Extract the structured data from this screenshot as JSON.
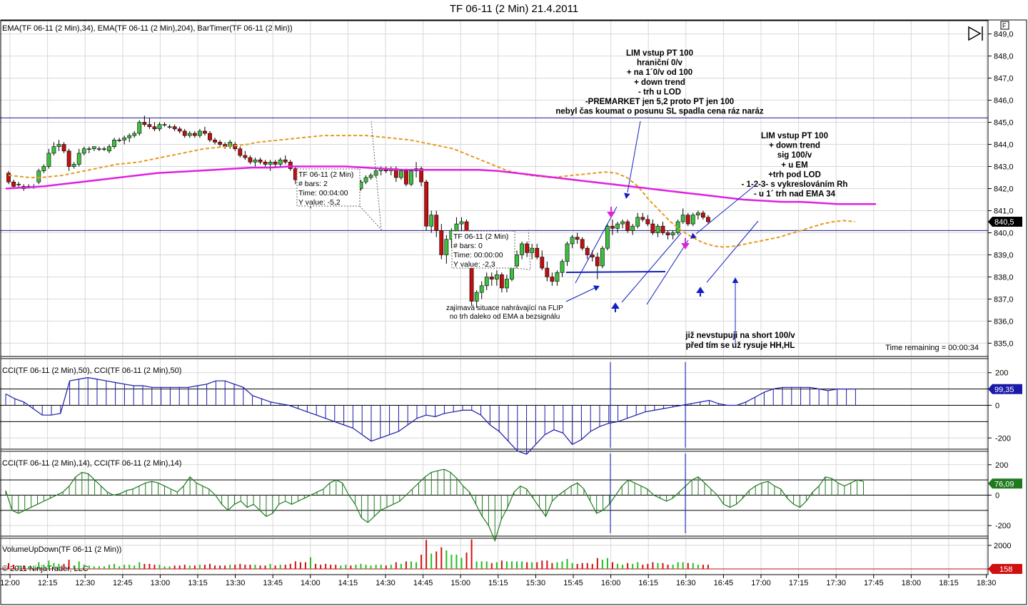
{
  "window": {
    "title": "TF 06-11 (2 Min)  21.4.2011",
    "f_button": "F",
    "copyright": "© 2011 NinjaTrader, LLC"
  },
  "price_panel": {
    "label": "EMA(TF 06-11 (2 Min),34), EMA(TF 06-11 (2 Min),204), BarTimer(TF 06-11 (2 Min))",
    "ylim": [
      834.4,
      849.6
    ],
    "y_ticks": [
      "849,0",
      "848,0",
      "847,0",
      "846,0",
      "845,0",
      "844,0",
      "843,0",
      "842,0",
      "841,0",
      "840,0",
      "839,0",
      "838,0",
      "837,0",
      "836,0",
      "835,0"
    ],
    "last_price": "840,5",
    "time_remaining": "Time remaining = 00:00:34",
    "hlines": [
      845.2,
      840.1
    ],
    "info_box_1": [
      "TF 06-11 (2 Min)",
      "# bars:   2",
      "Time:     00:04:00",
      "Y value:  -5,2"
    ],
    "info_box_2": [
      "TF 06-11 (2 Min)",
      "# bars:   0",
      "Time:     00:00:00",
      "Y value:  -2,3"
    ],
    "annotation_1": [
      "LIM vstup PT 100",
      "hraniční 0/v",
      "+ na 1´0/v od 100",
      "+ down trend",
      "- trh u LOD",
      "-PREMARKET jen 5,2 proto PT jen 100",
      "nebyl čas koumat o posunu SL spadla cena ráz naráz"
    ],
    "annotation_2": [
      "LIM vstup PT 100",
      "+ down trend",
      "sig 100/v",
      "+ u EM",
      "+trh pod LOD",
      "- 1-2-3- s vykreslováním Rh",
      "- u 1´ trh nad EMA 34"
    ],
    "annotation_3": [
      "zajímavá situace nahrávající na FLIP",
      "no trh daleko od EMA a bezsignálu"
    ],
    "annotation_4": [
      "již nevstupuji na short 100/v",
      "před tím se už rysuje HH,HL"
    ]
  },
  "cci50_panel": {
    "label": "CCI(TF 06-11 (2 Min),50), CCI(TF 06-11 (2 Min),50)",
    "y_ticks": [
      "200",
      "0",
      "-200"
    ],
    "last_value": "99,35",
    "color": "#1a1aaa"
  },
  "cci14_panel": {
    "label": "CCI(TF 06-11 (2 Min),14), CCI(TF 06-11 (2 Min),14)",
    "y_ticks": [
      "200",
      "0",
      "-200"
    ],
    "last_value": "76,09",
    "color": "#1f7a1f"
  },
  "volume_panel": {
    "label": "VolumeUpDown(TF 06-11 (2 Min))",
    "y_ticks": [
      "2000"
    ],
    "last_value": "158"
  },
  "x_axis": {
    "ticks": [
      "12:00",
      "12:15",
      "12:30",
      "12:45",
      "13:00",
      "13:15",
      "13:30",
      "13:45",
      "14:00",
      "14:15",
      "14:30",
      "14:45",
      "15:00",
      "15:15",
      "15:30",
      "15:45",
      "16:00",
      "16:15",
      "16:30",
      "16:45",
      "17:00",
      "17:15",
      "17:30",
      "17:45",
      "18:00",
      "18:15",
      "18:30"
    ]
  },
  "chart_data": {
    "type": "candlestick",
    "x_start": "12:00",
    "interval_minutes": 2,
    "ohlc": [
      [
        842.7,
        842.8,
        842.2,
        842.3
      ],
      [
        842.3,
        842.4,
        842.0,
        842.1
      ],
      [
        842.2,
        842.3,
        842.0,
        842.2
      ],
      [
        842.1,
        842.2,
        841.9,
        842.0
      ],
      [
        842.1,
        842.2,
        842.0,
        842.1
      ],
      [
        842.1,
        842.2,
        842.0,
        842.1
      ],
      [
        842.3,
        842.9,
        842.2,
        842.8
      ],
      [
        842.8,
        843.1,
        842.7,
        843.0
      ],
      [
        843.0,
        843.8,
        842.9,
        843.6
      ],
      [
        843.6,
        844.1,
        843.5,
        843.9
      ],
      [
        843.9,
        844.2,
        843.7,
        844.0
      ],
      [
        844.0,
        844.1,
        843.6,
        843.7
      ],
      [
        843.7,
        843.8,
        842.8,
        843.0
      ],
      [
        843.0,
        843.2,
        842.9,
        843.1
      ],
      [
        843.1,
        843.8,
        843.0,
        843.6
      ],
      [
        843.6,
        843.9,
        843.5,
        843.8
      ],
      [
        843.8,
        843.9,
        843.6,
        843.8
      ],
      [
        843.8,
        843.9,
        843.7,
        843.9
      ],
      [
        843.8,
        843.9,
        843.7,
        843.8
      ],
      [
        843.8,
        843.9,
        843.7,
        843.8
      ],
      [
        843.7,
        844.0,
        843.6,
        843.9
      ],
      [
        843.9,
        844.3,
        843.8,
        844.2
      ],
      [
        844.2,
        844.3,
        844.1,
        844.2
      ],
      [
        844.2,
        844.4,
        844.0,
        844.3
      ],
      [
        844.3,
        844.5,
        844.1,
        844.4
      ],
      [
        844.4,
        844.6,
        844.3,
        844.5
      ],
      [
        844.5,
        845.1,
        844.4,
        845.0
      ],
      [
        845.0,
        845.3,
        844.8,
        844.9
      ],
      [
        844.9,
        845.2,
        844.7,
        844.8
      ],
      [
        844.8,
        845.0,
        844.6,
        844.7
      ],
      [
        844.7,
        845.0,
        844.6,
        844.9
      ],
      [
        844.9,
        845.0,
        844.8,
        844.9
      ],
      [
        844.8,
        844.9,
        844.7,
        844.8
      ],
      [
        844.8,
        844.9,
        844.6,
        844.7
      ],
      [
        844.7,
        844.8,
        844.5,
        844.6
      ],
      [
        844.6,
        844.7,
        844.3,
        844.4
      ],
      [
        844.4,
        844.6,
        844.3,
        844.5
      ],
      [
        844.5,
        844.6,
        844.3,
        844.4
      ],
      [
        844.4,
        844.7,
        844.3,
        844.6
      ],
      [
        844.6,
        844.8,
        844.4,
        844.5
      ],
      [
        844.5,
        844.6,
        844.1,
        844.2
      ],
      [
        844.2,
        844.3,
        844.0,
        844.1
      ],
      [
        844.1,
        844.2,
        843.9,
        844.0
      ],
      [
        844.0,
        844.1,
        843.8,
        843.9
      ],
      [
        843.9,
        844.2,
        843.8,
        844.1
      ],
      [
        844.0,
        844.1,
        843.7,
        843.8
      ],
      [
        843.8,
        843.9,
        843.4,
        843.5
      ],
      [
        843.5,
        843.7,
        843.3,
        843.4
      ],
      [
        843.4,
        843.5,
        843.1,
        843.2
      ],
      [
        843.2,
        843.4,
        843.0,
        843.3
      ],
      [
        843.3,
        843.4,
        843.1,
        843.2
      ],
      [
        843.2,
        843.3,
        843.0,
        843.1
      ],
      [
        843.1,
        843.3,
        842.8,
        843.2
      ],
      [
        843.2,
        843.3,
        843.0,
        843.1
      ],
      [
        843.1,
        843.4,
        843.0,
        843.3
      ],
      [
        843.3,
        843.5,
        843.1,
        843.2
      ],
      [
        843.2,
        843.3,
        842.8,
        842.9
      ],
      [
        842.9,
        843.0,
        842.2,
        842.4
      ],
      [
        842.4,
        842.5,
        841.8,
        842.0
      ],
      [
        842.0,
        842.2,
        841.5,
        841.6
      ],
      [
        841.6,
        842.4,
        841.1,
        842.3
      ],
      [
        842.3,
        842.6,
        842.1,
        842.2
      ],
      [
        842.2,
        842.3,
        841.9,
        842.0
      ],
      [
        842.0,
        842.2,
        841.7,
        841.9
      ],
      [
        841.9,
        842.1,
        841.7,
        841.8
      ],
      [
        841.8,
        842.0,
        841.6,
        841.7
      ],
      [
        841.7,
        841.9,
        841.6,
        841.8
      ],
      [
        841.8,
        842.0,
        841.6,
        841.9
      ],
      [
        841.9,
        842.0,
        841.7,
        841.8
      ],
      [
        841.8,
        842.1,
        841.7,
        842.0
      ],
      [
        842.0,
        842.4,
        841.9,
        842.3
      ],
      [
        842.3,
        842.6,
        842.2,
        842.5
      ],
      [
        842.5,
        842.7,
        842.4,
        842.6
      ],
      [
        842.6,
        842.9,
        842.5,
        842.8
      ],
      [
        842.8,
        843.0,
        842.6,
        842.9
      ],
      [
        842.9,
        843.0,
        842.7,
        842.8
      ],
      [
        842.8,
        843.0,
        842.6,
        842.9
      ],
      [
        842.9,
        843.0,
        842.3,
        842.5
      ],
      [
        842.5,
        842.9,
        842.4,
        842.8
      ],
      [
        842.8,
        842.9,
        842.1,
        842.2
      ],
      [
        842.2,
        842.9,
        842.1,
        842.8
      ],
      [
        842.8,
        843.2,
        842.5,
        842.9
      ],
      [
        842.9,
        843.0,
        842.1,
        842.3
      ],
      [
        842.3,
        842.4,
        840.1,
        840.3
      ],
      [
        840.3,
        841.0,
        840.0,
        840.8
      ],
      [
        840.8,
        841.0,
        839.8,
        840.1
      ],
      [
        840.1,
        840.4,
        838.8,
        839.0
      ],
      [
        839.0,
        839.9,
        838.6,
        839.7
      ],
      [
        839.7,
        840.2,
        839.3,
        840.1
      ],
      [
        840.1,
        840.7,
        839.8,
        840.4
      ],
      [
        840.4,
        840.7,
        840.1,
        840.5
      ],
      [
        840.5,
        840.6,
        839.5,
        839.9
      ],
      [
        839.9,
        840.1,
        836.7,
        836.9
      ],
      [
        836.9,
        837.4,
        836.6,
        837.3
      ],
      [
        837.3,
        837.8,
        837.0,
        837.6
      ],
      [
        837.6,
        838.2,
        837.4,
        838.0
      ],
      [
        838.0,
        838.2,
        837.6,
        837.9
      ],
      [
        837.9,
        838.3,
        837.6,
        838.1
      ],
      [
        838.1,
        838.2,
        837.3,
        837.5
      ],
      [
        837.5,
        838.1,
        837.3,
        837.9
      ],
      [
        837.9,
        838.6,
        837.8,
        838.5
      ],
      [
        838.5,
        839.2,
        838.4,
        839.0
      ],
      [
        839.0,
        839.6,
        838.8,
        839.5
      ],
      [
        839.5,
        839.6,
        838.9,
        839.1
      ],
      [
        839.1,
        839.5,
        838.8,
        839.3
      ],
      [
        839.3,
        839.5,
        838.8,
        838.9
      ],
      [
        838.9,
        839.2,
        838.3,
        838.4
      ],
      [
        838.4,
        838.7,
        837.8,
        838.0
      ],
      [
        838.0,
        838.2,
        837.6,
        837.8
      ],
      [
        837.8,
        838.3,
        837.6,
        838.2
      ],
      [
        838.2,
        838.8,
        838.0,
        838.7
      ],
      [
        838.7,
        839.6,
        838.5,
        839.5
      ],
      [
        839.5,
        839.9,
        839.3,
        839.8
      ],
      [
        839.8,
        840.0,
        839.5,
        839.7
      ],
      [
        839.7,
        839.8,
        839.2,
        839.3
      ],
      [
        839.3,
        839.4,
        838.8,
        839.0
      ],
      [
        839.0,
        839.2,
        838.7,
        838.9
      ],
      [
        838.9,
        839.1,
        837.9,
        838.5
      ],
      [
        838.5,
        839.4,
        838.4,
        839.3
      ],
      [
        839.3,
        840.4,
        839.2,
        840.3
      ],
      [
        840.3,
        840.6,
        839.9,
        840.2
      ],
      [
        840.2,
        840.5,
        840.0,
        840.4
      ],
      [
        840.4,
        840.6,
        840.2,
        840.5
      ],
      [
        840.5,
        840.6,
        840.0,
        840.1
      ],
      [
        840.1,
        840.4,
        839.9,
        840.3
      ],
      [
        840.3,
        840.9,
        840.2,
        840.7
      ],
      [
        840.7,
        840.9,
        840.5,
        840.6
      ],
      [
        840.6,
        840.8,
        840.3,
        840.4
      ],
      [
        840.4,
        840.6,
        839.9,
        840.0
      ],
      [
        840.0,
        840.4,
        839.8,
        840.3
      ],
      [
        840.3,
        840.5,
        839.9,
        840.0
      ],
      [
        840.0,
        840.1,
        839.7,
        839.9
      ],
      [
        839.9,
        840.1,
        839.7,
        840.0
      ],
      [
        840.0,
        840.6,
        839.9,
        840.5
      ],
      [
        840.5,
        841.1,
        840.4,
        840.8
      ],
      [
        840.8,
        840.9,
        840.3,
        840.4
      ],
      [
        840.4,
        840.9,
        840.3,
        840.8
      ],
      [
        840.8,
        841.0,
        840.6,
        840.9
      ],
      [
        840.9,
        841.0,
        840.6,
        840.7
      ],
      [
        840.7,
        840.8,
        840.4,
        840.5
      ]
    ],
    "ema34": [
      842.6,
      842.55,
      842.5,
      842.5,
      842.55,
      842.6,
      842.7,
      842.8,
      842.9,
      843.0,
      843.1,
      843.15,
      843.2,
      843.3,
      843.4,
      843.5,
      843.6,
      843.7,
      843.8,
      843.85,
      843.9,
      843.95,
      844.0,
      844.1,
      844.15,
      844.2,
      844.25,
      844.3,
      844.35,
      844.4,
      844.4,
      844.4,
      844.4,
      844.4,
      844.35,
      844.3,
      844.25,
      844.2,
      844.1,
      844.0,
      843.9,
      843.8,
      843.6,
      843.4,
      843.2,
      843.0,
      842.8,
      842.7,
      842.6,
      842.55,
      842.5,
      842.55,
      842.6,
      842.65,
      842.7,
      842.75,
      842.7,
      842.5,
      842.1,
      841.5,
      841.0,
      840.5,
      840.1,
      839.8,
      839.55,
      839.4,
      839.35,
      839.4,
      839.5,
      839.6,
      839.7,
      839.8,
      839.95,
      840.1,
      840.25,
      840.4,
      840.5,
      840.55,
      840.5
    ],
    "ema204": [
      842.0,
      842.05,
      842.1,
      842.2,
      842.3,
      842.4,
      842.5,
      842.6,
      842.7,
      842.75,
      842.8,
      842.85,
      842.9,
      842.95,
      842.95,
      843.0,
      843.0,
      843.0,
      843.0,
      842.95,
      842.9,
      842.85,
      842.85,
      842.85,
      842.85,
      842.85,
      842.8,
      842.7,
      842.6,
      842.5,
      842.4,
      842.3,
      842.2,
      842.1,
      842.0,
      841.9,
      841.8,
      841.7,
      841.6,
      841.5,
      841.45,
      841.4,
      841.4,
      841.35,
      841.3,
      841.3,
      841.3
    ],
    "cci50": [
      70,
      40,
      20,
      -20,
      -60,
      -60,
      -50,
      150,
      160,
      170,
      160,
      150,
      140,
      130,
      120,
      120,
      110,
      110,
      110,
      110,
      110,
      120,
      130,
      150,
      150,
      130,
      110,
      60,
      40,
      20,
      10,
      0,
      -20,
      -40,
      -60,
      -80,
      -100,
      -120,
      -140,
      -180,
      -220,
      -200,
      -180,
      -160,
      -120,
      -80,
      -60,
      -70,
      -50,
      -40,
      -30,
      -30,
      -60,
      -120,
      -160,
      -220,
      -280,
      -300,
      -240,
      -180,
      -150,
      -170,
      -240,
      -210,
      -160,
      -130,
      -110,
      -100,
      -80,
      -60,
      -40,
      -30,
      -20,
      -10,
      0,
      10,
      20,
      30,
      10,
      0,
      0,
      20,
      50,
      80,
      100,
      110,
      110,
      110,
      110,
      100,
      90,
      100,
      100,
      100
    ],
    "cci14": [
      30,
      -100,
      -120,
      -100,
      -80,
      -60,
      -40,
      -20,
      0,
      20,
      60,
      120,
      150,
      140,
      100,
      60,
      20,
      0,
      10,
      30,
      40,
      60,
      80,
      90,
      80,
      60,
      40,
      20,
      60,
      120,
      80,
      60,
      40,
      0,
      -60,
      -100,
      -60,
      -40,
      -80,
      -60,
      -100,
      -140,
      -120,
      -60,
      -40,
      -60,
      -40,
      -20,
      0,
      20,
      40,
      80,
      100,
      80,
      0,
      -60,
      -150,
      -180,
      -140,
      -100,
      -80,
      -60,
      -40,
      0,
      40,
      80,
      120,
      150,
      160,
      170,
      150,
      110,
      60,
      20,
      -60,
      -140,
      -200,
      -300,
      -160,
      -80,
      20,
      60,
      40,
      -20,
      -80,
      -140,
      -40,
      0,
      30,
      60,
      80,
      40,
      -40,
      -120,
      -100,
      -60,
      0,
      60,
      100,
      80,
      60,
      40,
      0,
      -20,
      -40,
      -20,
      20,
      60,
      100,
      120,
      80,
      40,
      0,
      -60,
      -80,
      -60,
      -20,
      30,
      60,
      80,
      90,
      60,
      40,
      -20,
      -60,
      -80,
      -40,
      20,
      60,
      120,
      110,
      80,
      60,
      80,
      100,
      90
    ],
    "volume_note": "VolumeUpDown bars in green (up) and red (down)"
  }
}
